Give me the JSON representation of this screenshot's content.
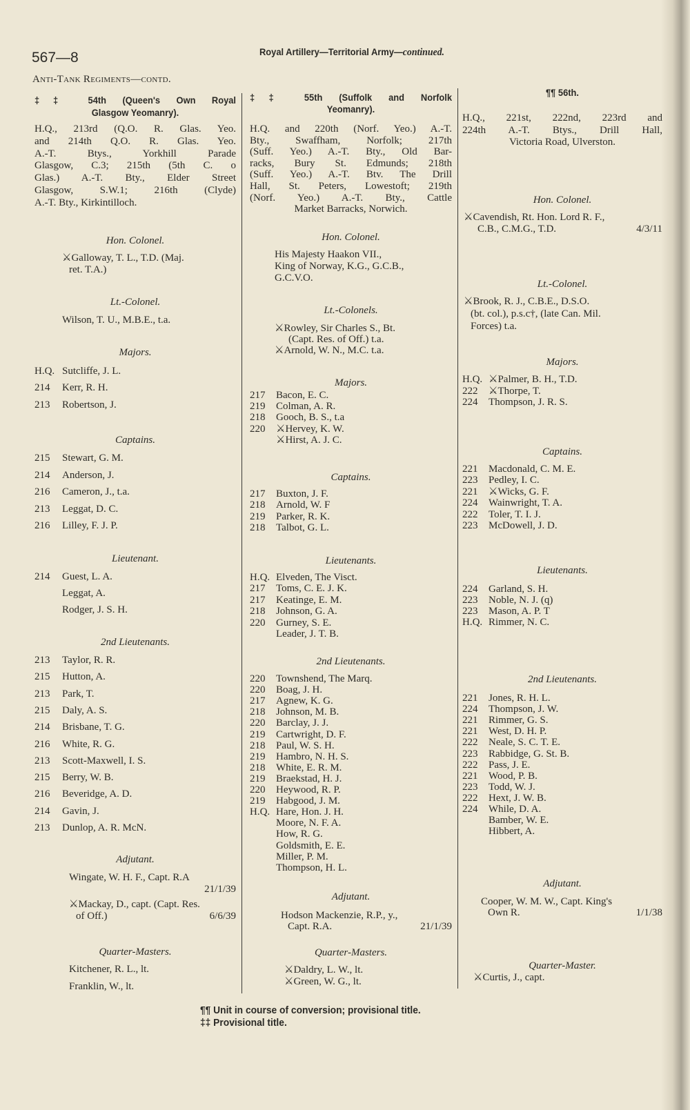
{
  "page_number": "567—8",
  "running_title": {
    "main": "Royal Artillery—Territorial Army—",
    "suffix": "continued."
  },
  "section_heading": "Anti-Tank Regiments—contd.",
  "columns": [
    {
      "heading": [
        "‡‡  54th  (Queen's  Own  Royal",
        "Glasgow Yeomanry)."
      ],
      "address": [
        "H.Q., 213rd (Q.O. R. Glas. Yeo.",
        "and 214th Q.O. R. Glas. Yeo.",
        "A.-T. Btys., Yorkhill Parade",
        "Glasgow, C.3; 215th (5th C. o",
        "Glas.) A.-T. Bty., Elder Street",
        "Glasgow, S.W.1; 216th (Clyde)",
        "A.-T. Bty., Kirkintilloch."
      ],
      "sections": [
        {
          "title": "Hon. Colonel.",
          "lines": [
            {
              "t": "⚔Galloway, T. L., T.D. (Maj."
            },
            {
              "t": "ret. T.A.)",
              "i": 1
            }
          ]
        },
        {
          "title": "Lt.-Colonel.",
          "lines": [
            {
              "t": "Wilson, T. U., M.B.E., t.a."
            }
          ]
        },
        {
          "title": "Majors.",
          "lines": [
            {
              "u": "H.Q.",
              "t": "Sutcliffe, J. L."
            },
            {
              "u": "214",
              "t": "Kerr, R. H."
            },
            {
              "u": "213",
              "t": "Robertson, J."
            }
          ]
        },
        {
          "title": "Captains.",
          "lines": [
            {
              "u": "215",
              "t": "Stewart, G. M."
            },
            {
              "u": "214",
              "t": "Anderson, J."
            },
            {
              "u": "216",
              "t": "Cameron, J., t.a."
            },
            {
              "u": "213",
              "t": "Leggat, D. C."
            },
            {
              "u": "216",
              "t": "Lilley, F. J. P."
            }
          ]
        },
        {
          "title": "Lieutenant.",
          "lines": [
            {
              "u": "214",
              "t": "Guest, L. A."
            },
            {
              "t": "Leggat, A."
            },
            {
              "t": "Rodger, J. S. H."
            }
          ]
        },
        {
          "title": "2nd Lieutenants.",
          "lines": [
            {
              "u": "213",
              "t": "Taylor, R. R."
            },
            {
              "u": "215",
              "t": "Hutton, A."
            },
            {
              "u": "213",
              "t": "Park, T."
            },
            {
              "u": "215",
              "t": "Daly, A. S."
            },
            {
              "u": "214",
              "t": "Brisbane, T. G."
            },
            {
              "u": "216",
              "t": "White, R. G."
            },
            {
              "u": "213",
              "t": "Scott-Maxwell, I. S."
            },
            {
              "u": "215",
              "t": "Berry, W. B."
            },
            {
              "u": "216",
              "t": "Beveridge, A. D."
            },
            {
              "u": "214",
              "t": "Gavin, J."
            },
            {
              "u": "213",
              "t": "Dunlop, A. R. McN."
            }
          ]
        },
        {
          "title": "Adjutant.",
          "lines": [
            {
              "t": "Wingate, W. H. F., Capt. R.A"
            },
            {
              "r": "21/1/39"
            },
            {
              "t": "⚔Mackay, D., capt. (Capt. Res."
            },
            {
              "t": "of Off.)",
              "i": 1,
              "r": "6/6/39"
            }
          ]
        },
        {
          "title": "Quarter-Masters.",
          "lines": [
            {
              "t": "Kitchener, R. L., lt."
            },
            {
              "t": "Franklin, W., lt."
            }
          ]
        }
      ]
    },
    {
      "heading": [
        "‡‡ 55th  (Suffolk  and  Norfolk",
        "Yeomanry)."
      ],
      "address": [
        "H.Q. and 220th (Norf. Yeo.) A.-T.",
        "Bty., Swaffham, Norfolk; 217th",
        "(Suff. Yeo.) A.-T. Bty., Old Bar-",
        "racks, Bury St. Edmunds; 218th",
        "(Suff. Yeo.) A.-T. Btv. The Drill",
        "Hall, St. Peters, Lowestoft; 219th",
        "(Norf. Yeo.) A.-T. Bty., Cattle",
        "Market Barracks, Norwich."
      ],
      "sections": [
        {
          "title": "Hon. Colonel.",
          "lines": [
            {
              "t": "His Majesty Haakon VII.,"
            },
            {
              "t": "King of Norway, K.G., G.C.B.,"
            },
            {
              "t": "G.C.V.O."
            }
          ]
        },
        {
          "title": "Lt.-Colonels.",
          "lines": [
            {
              "t": "⚔Rowley, Sir Charles S., Bt."
            },
            {
              "t": "(Capt. Res. of Off.) t.a.",
              "i": 2
            },
            {
              "t": "⚔Arnold, W. N., M.C. t.a."
            }
          ]
        },
        {
          "title": "Majors.",
          "lines": [
            {
              "u": "217",
              "t": "Bacon, E. C."
            },
            {
              "u": "219",
              "t": "Colman, A. R."
            },
            {
              "u": "218",
              "t": "Gooch, B. S., t.a"
            },
            {
              "u": "220",
              "t": "⚔Hervey, K. W."
            },
            {
              "t": "⚔Hirst, A. J. C."
            }
          ]
        },
        {
          "title": "Captains.",
          "lines": [
            {
              "u": "217",
              "t": "Buxton, J. F."
            },
            {
              "u": "218",
              "t": "Arnold, W. F"
            },
            {
              "u": "219",
              "t": "Parker, R. K."
            },
            {
              "u": "218",
              "t": "Talbot, G. L."
            }
          ]
        },
        {
          "title": "Lieutenants.",
          "lines": [
            {
              "u": "H.Q.",
              "t": "Elveden, The Visct."
            },
            {
              "u": "217",
              "t": "Toms, C. E. J. K."
            },
            {
              "u": "217",
              "t": "Keatinge, E. M."
            },
            {
              "u": "218",
              "t": "Johnson, G. A."
            },
            {
              "u": "220",
              "t": "Gurney, S. E."
            },
            {
              "t": "Leader, J. T. B."
            }
          ]
        },
        {
          "title": "2nd Lieutenants.",
          "lines": [
            {
              "u": "220",
              "t": "Townshend, The Marq."
            },
            {
              "u": "220",
              "t": "Boag, J. H."
            },
            {
              "u": "217",
              "t": "Agnew, K. G."
            },
            {
              "u": "218",
              "t": "Johnson, M. B."
            },
            {
              "u": "220",
              "t": "Barclay, J. J."
            },
            {
              "u": "219",
              "t": "Cartwright, D. F."
            },
            {
              "u": "218",
              "t": "Paul, W. S. H."
            },
            {
              "u": "219",
              "t": "Hambro, N. H. S."
            },
            {
              "u": "218",
              "t": "White, E. R. M."
            },
            {
              "u": "219",
              "t": "Braekstad, H. J."
            },
            {
              "u": "220",
              "t": "Heywood, R. P."
            },
            {
              "u": "219",
              "t": "Habgood, J. M."
            },
            {
              "u": "H.Q.",
              "t": "Hare, Hon. J. H."
            },
            {
              "t": "Moore, N. F. A."
            },
            {
              "t": "How, R. G."
            },
            {
              "t": "Goldsmith, E. E."
            },
            {
              "t": "Miller, P. M."
            },
            {
              "t": "Thompson, H. L."
            }
          ]
        },
        {
          "title": "Adjutant.",
          "lines": [
            {
              "t": "Hodson Mackenzie, R.P., y.,"
            },
            {
              "t": "Capt. R.A.",
              "i": 1,
              "r": "21/1/39"
            }
          ]
        },
        {
          "title": "Quarter-Masters.",
          "lines": [
            {
              "t": "⚔Daldry, L. W., lt."
            },
            {
              "t": "⚔Green, W. G., lt."
            }
          ]
        }
      ]
    },
    {
      "heading": [
        "¶¶ 56th."
      ],
      "address": [
        "H.Q., 221st, 222nd, 223rd and",
        "224th A.-T. Btys., Drill Hall,",
        "Victoria Road, Ulverston."
      ],
      "sections": [
        {
          "title": "Hon. Colonel.",
          "lines": [
            {
              "t": "⚔Cavendish, Rt. Hon. Lord R. F.,"
            },
            {
              "t": "C.B., C.M.G., T.D.",
              "i": 2,
              "r": "4/3/11"
            }
          ]
        },
        {
          "title": "Lt.-Colonel.",
          "lines": [
            {
              "t": "⚔Brook, R. J., C.B.E., D.S.O."
            },
            {
              "t": "(bt. col.), p.s.c†, (late Can. Mil.",
              "i": 1
            },
            {
              "t": "Forces) t.a.",
              "i": 1
            }
          ]
        },
        {
          "title": "Majors.",
          "lines": [
            {
              "u": "H.Q.",
              "t": "⚔Palmer, B. H., T.D."
            },
            {
              "u": "222",
              "t": "⚔Thorpe, T."
            },
            {
              "u": "224",
              "t": "Thompson, J. R. S."
            }
          ]
        },
        {
          "title": "Captains.",
          "lines": [
            {
              "u": "221",
              "t": "Macdonald, C. M. E."
            },
            {
              "u": "223",
              "t": "Pedley, I. C."
            },
            {
              "u": "221",
              "t": "⚔Wicks, G. F."
            },
            {
              "u": "224",
              "t": "Wainwright, T. A."
            },
            {
              "u": "222",
              "t": "Toler, T. I. J."
            },
            {
              "u": "223",
              "t": "McDowell, J. D."
            }
          ]
        },
        {
          "title": "Lieutenants.",
          "lines": [
            {
              "u": "224",
              "t": "Garland, S. H."
            },
            {
              "u": "223",
              "t": "Noble, N. J. (q)"
            },
            {
              "u": "223",
              "t": "Mason, A. P. T"
            },
            {
              "u": "H.Q.",
              "t": "Rimmer, N. C."
            }
          ]
        },
        {
          "title": "2nd Lieutenants.",
          "lines": [
            {
              "u": "221",
              "t": "Jones, R. H. L."
            },
            {
              "u": "224",
              "t": "Thompson, J. W."
            },
            {
              "u": "221",
              "t": "Rimmer, G. S."
            },
            {
              "u": "221",
              "t": "West, D. H. P."
            },
            {
              "u": "222",
              "t": "Neale, S. C. T. E."
            },
            {
              "u": "223",
              "t": "Rabbidge, G. St. B."
            },
            {
              "u": "222",
              "t": "Pass, J. E."
            },
            {
              "u": "221",
              "t": "Wood, P. B."
            },
            {
              "u": "223",
              "t": "Todd, W. J."
            },
            {
              "u": "222",
              "t": "Hext, J. W. B."
            },
            {
              "u": "224",
              "t": "While, D. A."
            },
            {
              "t": "Bamber, W. E."
            },
            {
              "t": "Hibbert, A."
            }
          ]
        },
        {
          "title": "Adjutant.",
          "lines": [
            {
              "t": "Cooper, W. M. W., Capt. King's"
            },
            {
              "t": "Own R.",
              "i": 1,
              "r": "1/1/38"
            }
          ]
        },
        {
          "title": "Quarter-Master.",
          "lines": [
            {
              "t": "⚔Curtis, J., capt."
            }
          ]
        }
      ]
    }
  ],
  "footnotes": [
    "¶¶ Unit in course of conversion; provisional title.",
    "‡‡ Provisional title."
  ]
}
